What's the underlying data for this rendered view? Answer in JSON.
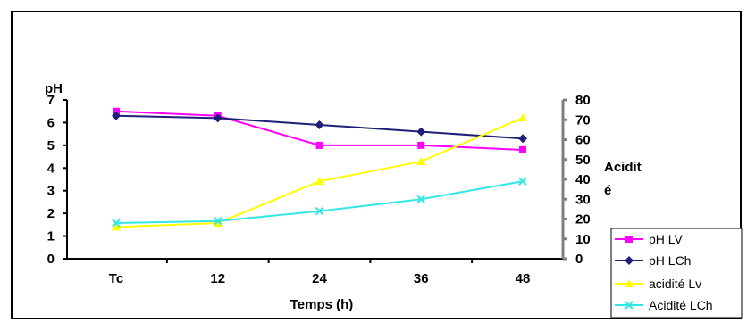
{
  "chart_data": {
    "type": "line",
    "categories": [
      "Tc",
      "12",
      "24",
      "36",
      "48"
    ],
    "xlabel": "Temps (h)",
    "y_left_label": "pH",
    "y_left_lim": [
      0,
      7
    ],
    "y_left_ticks": [
      "0",
      "1",
      "2",
      "3",
      "4",
      "5",
      "6",
      "7"
    ],
    "y_right_label_line1": "Acidit",
    "y_right_label_line2": "é",
    "y_right_lim": [
      0,
      80
    ],
    "y_right_ticks": [
      "0",
      "10",
      "20",
      "30",
      "40",
      "50",
      "60",
      "70",
      "80"
    ],
    "series": [
      {
        "name": "pH LV",
        "axis": "left",
        "color": "#ff00ff",
        "marker": "square",
        "values": [
          6.5,
          6.3,
          5.0,
          5.0,
          4.8
        ]
      },
      {
        "name": "pH LCh",
        "axis": "left",
        "color": "#1f1f7a",
        "marker": "diamond",
        "values": [
          6.3,
          6.2,
          5.9,
          5.6,
          5.3
        ]
      },
      {
        "name": "acidité Lv",
        "axis": "right",
        "color": "#ffff00",
        "marker": "triangle",
        "values": [
          16,
          18,
          39,
          49,
          71
        ]
      },
      {
        "name": "Acidité LCh",
        "axis": "right",
        "color": "#33e6e6",
        "marker": "x",
        "values": [
          18,
          19,
          24,
          30,
          39
        ]
      }
    ],
    "legend_position": "bottom-right"
  }
}
